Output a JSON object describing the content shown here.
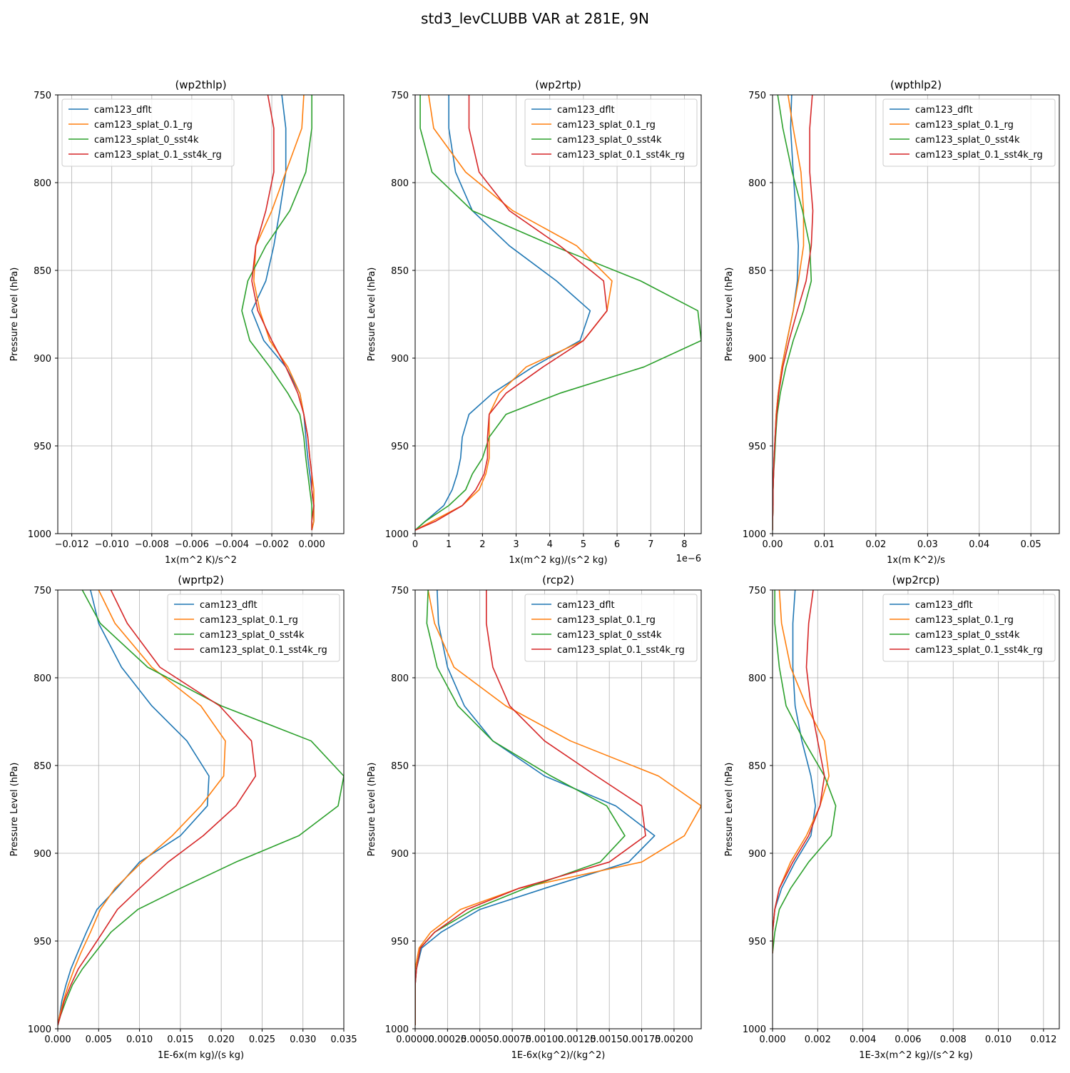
{
  "figure": {
    "title": "std3_levCLUBB VAR at 281E, 9N"
  },
  "series_names": [
    "cam123_dflt",
    "cam123_splat_0.1_rg",
    "cam123_splat_0_sst4k",
    "cam123_splat_0.1_sst4k_rg"
  ],
  "series_colors": [
    "#1f77b4",
    "#ff7f0e",
    "#2ca02c",
    "#d62728"
  ],
  "chart_data": [
    {
      "type": "line",
      "title": "(wp2thlp)",
      "xlabel": "1x(m^2 K)/s^2",
      "ylabel": "Pressure Level (hPa)",
      "xlim": [
        -0.0127,
        0.0016
      ],
      "ylim": [
        1000,
        750
      ],
      "y_inverted": true,
      "xticks": [
        -0.012,
        -0.01,
        -0.008,
        -0.006,
        -0.004,
        -0.002,
        0.0
      ],
      "xtick_labels": [
        "−0.012",
        "−0.010",
        "−0.008",
        "−0.006",
        "−0.004",
        "−0.002",
        "0.000"
      ],
      "yticks": [
        750,
        800,
        850,
        900,
        950,
        1000
      ],
      "ytick_labels": [
        "750",
        "800",
        "850",
        "900",
        "950",
        "1000"
      ],
      "grid": true,
      "legend": "upper-left",
      "levels": [
        750,
        769,
        794,
        816,
        836,
        856,
        873,
        890,
        905,
        920,
        932,
        945,
        957,
        966,
        975,
        984,
        993,
        998
      ],
      "series": [
        {
          "name": "cam123_dflt",
          "values": [
            -0.0015,
            -0.0013,
            -0.0013,
            -0.0016,
            -0.0019,
            -0.0023,
            -0.003,
            -0.0024,
            -0.0013,
            -0.0006,
            -0.0004,
            -0.0003,
            -0.0002,
            -0.0001,
            0.0,
            0.0001,
            0.0001,
            0.0
          ]
        },
        {
          "name": "cam123_splat_0.1_rg",
          "values": [
            -0.0004,
            -0.0005,
            -0.0013,
            -0.002,
            -0.0028,
            -0.0029,
            -0.0026,
            -0.0021,
            -0.0012,
            -0.0006,
            -0.0004,
            -0.0002,
            -0.0001,
            0.0,
            0.0001,
            0.0001,
            0.0001,
            0.0
          ]
        },
        {
          "name": "cam123_splat_0_sst4k",
          "values": [
            0.0,
            0.0,
            -0.0003,
            -0.0011,
            -0.0023,
            -0.0032,
            -0.0035,
            -0.0031,
            -0.0021,
            -0.0012,
            -0.0006,
            -0.0004,
            -0.0003,
            -0.0002,
            -0.0001,
            0.0,
            0.0,
            0.0
          ]
        },
        {
          "name": "cam123_splat_0.1_sst4k_rg",
          "values": [
            -0.0022,
            -0.0019,
            -0.0019,
            -0.0023,
            -0.0028,
            -0.003,
            -0.0027,
            -0.002,
            -0.0013,
            -0.0007,
            -0.0004,
            -0.0002,
            -0.0001,
            0.0,
            0.0,
            0.0001,
            0.0,
            0.0
          ]
        }
      ]
    },
    {
      "type": "line",
      "title": "(wp2rtp)",
      "xlabel": "1x(m^2 kg)/(s^2 kg)",
      "offset_text": "1e−6",
      "ylabel": "Pressure Level (hPa)",
      "xlim": [
        0,
        8.5
      ],
      "ylim": [
        1000,
        750
      ],
      "y_inverted": true,
      "xticks": [
        0,
        1,
        2,
        3,
        4,
        5,
        6,
        7,
        8
      ],
      "xtick_labels": [
        "0",
        "1",
        "2",
        "3",
        "4",
        "5",
        "6",
        "7",
        "8"
      ],
      "yticks": [
        750,
        800,
        850,
        900,
        950,
        1000
      ],
      "ytick_labels": [
        "750",
        "800",
        "850",
        "900",
        "950",
        "1000"
      ],
      "grid": true,
      "legend": "upper-right",
      "levels": [
        750,
        769,
        794,
        816,
        836,
        856,
        873,
        890,
        905,
        920,
        932,
        945,
        957,
        966,
        975,
        984,
        993,
        998
      ],
      "series": [
        {
          "name": "cam123_dflt",
          "values": [
            1.0,
            1.0,
            1.2,
            1.7,
            2.8,
            4.2,
            5.2,
            4.9,
            3.5,
            2.3,
            1.6,
            1.4,
            1.35,
            1.25,
            1.1,
            0.85,
            0.3,
            0.0
          ]
        },
        {
          "name": "cam123_splat_0.1_rg",
          "values": [
            0.4,
            0.55,
            1.5,
            2.9,
            4.8,
            5.85,
            5.7,
            5.0,
            3.3,
            2.5,
            2.2,
            2.2,
            2.2,
            2.1,
            1.9,
            1.4,
            0.5,
            0.0
          ]
        },
        {
          "name": "cam123_splat_0_sst4k",
          "values": [
            0.15,
            0.15,
            0.5,
            1.7,
            4.1,
            6.7,
            8.4,
            8.5,
            6.8,
            4.3,
            2.7,
            2.2,
            2.0,
            1.7,
            1.5,
            1.0,
            0.3,
            0.0
          ]
        },
        {
          "name": "cam123_splat_0.1_sst4k_rg",
          "values": [
            1.6,
            1.6,
            1.9,
            2.8,
            4.3,
            5.6,
            5.7,
            5.0,
            3.8,
            2.7,
            2.2,
            2.15,
            2.15,
            2.05,
            1.8,
            1.4,
            0.6,
            0.0
          ]
        }
      ]
    },
    {
      "type": "line",
      "title": "(wpthlp2)",
      "xlabel": "1x(m K^2)/s",
      "ylabel": "Pressure Level (hPa)",
      "xlim": [
        0,
        0.0555
      ],
      "ylim": [
        1000,
        750
      ],
      "y_inverted": true,
      "xticks": [
        0.0,
        0.01,
        0.02,
        0.03,
        0.04,
        0.05
      ],
      "xtick_labels": [
        "0.00",
        "0.01",
        "0.02",
        "0.03",
        "0.04",
        "0.05"
      ],
      "yticks": [
        750,
        800,
        850,
        900,
        950,
        1000
      ],
      "ytick_labels": [
        "750",
        "800",
        "850",
        "900",
        "950",
        "1000"
      ],
      "grid": true,
      "legend": "upper-right",
      "levels": [
        750,
        769,
        794,
        816,
        836,
        856,
        873,
        890,
        905,
        920,
        932,
        945,
        957,
        966,
        975,
        984,
        993,
        998
      ],
      "series": [
        {
          "name": "cam123_dflt",
          "values": [
            0.0037,
            0.0035,
            0.004,
            0.0045,
            0.005,
            0.0048,
            0.004,
            0.0028,
            0.0018,
            0.0011,
            0.0007,
            0.0005,
            0.0003,
            0.0002,
            0.0001,
            0.0001,
            0.0,
            0.0
          ]
        },
        {
          "name": "cam123_splat_0.1_rg",
          "values": [
            0.003,
            0.004,
            0.0055,
            0.006,
            0.006,
            0.005,
            0.004,
            0.0028,
            0.0018,
            0.0011,
            0.0007,
            0.0005,
            0.0003,
            0.0002,
            0.0001,
            0.0001,
            0.0,
            0.0
          ]
        },
        {
          "name": "cam123_splat_0_sst4k",
          "values": [
            0.001,
            0.002,
            0.0038,
            0.0058,
            0.0072,
            0.0075,
            0.006,
            0.004,
            0.0026,
            0.0015,
            0.0009,
            0.0006,
            0.0004,
            0.0002,
            0.0001,
            0.0001,
            0.0,
            0.0
          ]
        },
        {
          "name": "cam123_splat_0.1_sst4k_rg",
          "values": [
            0.0077,
            0.0072,
            0.0072,
            0.0078,
            0.0075,
            0.0065,
            0.0048,
            0.0032,
            0.002,
            0.0012,
            0.0008,
            0.0005,
            0.0003,
            0.0002,
            0.0001,
            0.0001,
            0.0,
            0.0
          ]
        }
      ]
    },
    {
      "type": "line",
      "title": "(wprtp2)",
      "xlabel": "1E-6x(m kg)/(s kg)",
      "ylabel": "Pressure Level (hPa)",
      "xlim": [
        0,
        0.035
      ],
      "ylim": [
        1000,
        750
      ],
      "y_inverted": true,
      "xticks": [
        0.0,
        0.005,
        0.01,
        0.015,
        0.02,
        0.025,
        0.03,
        0.035
      ],
      "xtick_labels": [
        "0.000",
        "0.005",
        "0.010",
        "0.015",
        "0.020",
        "0.025",
        "0.030",
        "0.035"
      ],
      "yticks": [
        750,
        800,
        850,
        900,
        950,
        1000
      ],
      "ytick_labels": [
        "750",
        "800",
        "850",
        "900",
        "950",
        "1000"
      ],
      "grid": true,
      "legend": "upper-right",
      "levels": [
        750,
        769,
        794,
        816,
        836,
        856,
        873,
        890,
        905,
        920,
        932,
        945,
        957,
        966,
        975,
        984,
        993,
        998
      ],
      "series": [
        {
          "name": "cam123_dflt",
          "values": [
            0.004,
            0.005,
            0.0078,
            0.0115,
            0.0158,
            0.0185,
            0.0183,
            0.015,
            0.01,
            0.0072,
            0.0048,
            0.0035,
            0.0024,
            0.0016,
            0.001,
            0.0005,
            0.0002,
            0.0
          ]
        },
        {
          "name": "cam123_splat_0.1_rg",
          "values": [
            0.005,
            0.007,
            0.0115,
            0.0175,
            0.0205,
            0.0203,
            0.0175,
            0.014,
            0.0103,
            0.007,
            0.0052,
            0.004,
            0.0028,
            0.002,
            0.0013,
            0.0007,
            0.0002,
            0.0
          ]
        },
        {
          "name": "cam123_splat_0_sst4k",
          "values": [
            0.003,
            0.0052,
            0.011,
            0.02,
            0.031,
            0.035,
            0.0343,
            0.0295,
            0.0218,
            0.015,
            0.0098,
            0.0065,
            0.0045,
            0.003,
            0.0018,
            0.001,
            0.0003,
            0.0
          ]
        },
        {
          "name": "cam123_splat_0.1_sst4k_rg",
          "values": [
            0.0065,
            0.0085,
            0.0125,
            0.0198,
            0.0237,
            0.0242,
            0.0218,
            0.0178,
            0.0135,
            0.01,
            0.0073,
            0.0055,
            0.0038,
            0.0025,
            0.0016,
            0.0008,
            0.0003,
            0.0
          ]
        }
      ]
    },
    {
      "type": "line",
      "title": "(rcp2)",
      "xlabel": "1E-6x(kg^2)/(kg^2)",
      "ylabel": "Pressure Level (hPa)",
      "xlim": [
        0,
        0.00221
      ],
      "ylim": [
        1000,
        750
      ],
      "y_inverted": true,
      "xticks": [
        0.0,
        0.00025,
        0.0005,
        0.00075,
        0.001,
        0.00125,
        0.0015,
        0.00175,
        0.002
      ],
      "xtick_labels": [
        "0.00000",
        "0.00025",
        "0.00050",
        "0.00075",
        "0.00100",
        "0.00125",
        "0.00150",
        "0.00175",
        "0.00200"
      ],
      "yticks": [
        750,
        800,
        850,
        900,
        950,
        1000
      ],
      "ytick_labels": [
        "750",
        "800",
        "850",
        "900",
        "950",
        "1000"
      ],
      "grid": true,
      "legend": "upper-right",
      "levels": [
        750,
        769,
        794,
        816,
        836,
        856,
        873,
        890,
        905,
        920,
        932,
        945,
        954,
        966,
        975,
        984,
        993,
        998
      ],
      "series": [
        {
          "name": "cam123_dflt",
          "values": [
            0.00017,
            0.00018,
            0.00025,
            0.00038,
            0.0006,
            0.001,
            0.00155,
            0.00185,
            0.00165,
            0.001,
            0.0005,
            0.0002,
            5e-05,
            1e-05,
            0.0,
            0.0,
            0.0,
            0.0
          ]
        },
        {
          "name": "cam123_splat_0.1_rg",
          "values": [
            0.0001,
            0.00015,
            0.0003,
            0.0007,
            0.0012,
            0.00188,
            0.00221,
            0.00208,
            0.00175,
            0.0008,
            0.00035,
            0.00012,
            3e-05,
            0.0,
            0.0,
            0.0,
            0.0,
            0.0
          ]
        },
        {
          "name": "cam123_splat_0_sst4k",
          "values": [
            0.0001,
            9e-05,
            0.00017,
            0.00033,
            0.0006,
            0.00105,
            0.00148,
            0.00162,
            0.00143,
            0.00085,
            0.00045,
            0.00015,
            4e-05,
            1e-05,
            0.0,
            0.0,
            0.0,
            0.0
          ]
        },
        {
          "name": "cam123_splat_0.1_sst4k_rg",
          "values": [
            0.00055,
            0.00055,
            0.0006,
            0.00073,
            0.001,
            0.0014,
            0.00175,
            0.00178,
            0.0015,
            0.0008,
            0.0004,
            0.00015,
            4e-05,
            1e-05,
            0.0,
            0.0,
            0.0,
            0.0
          ]
        }
      ]
    },
    {
      "type": "line",
      "title": "(wp2rcp)",
      "xlabel": "1E-3x(m^2 kg)/(s^2 kg)",
      "ylabel": "Pressure Level (hPa)",
      "xlim": [
        0,
        0.0127
      ],
      "ylim": [
        1000,
        750
      ],
      "y_inverted": true,
      "xticks": [
        0.0,
        0.002,
        0.004,
        0.006,
        0.008,
        0.01,
        0.012
      ],
      "xtick_labels": [
        "0.000",
        "0.002",
        "0.004",
        "0.006",
        "0.008",
        "0.010",
        "0.012"
      ],
      "yticks": [
        750,
        800,
        850,
        900,
        950,
        1000
      ],
      "ytick_labels": [
        "750",
        "800",
        "850",
        "900",
        "950",
        "1000"
      ],
      "grid": true,
      "legend": "upper-right",
      "levels": [
        750,
        769,
        794,
        816,
        836,
        856,
        873,
        890,
        905,
        920,
        932,
        945,
        957
      ],
      "series": [
        {
          "name": "cam123_dflt",
          "values": [
            0.001,
            0.0009,
            0.0009,
            0.001,
            0.0013,
            0.0017,
            0.0019,
            0.0017,
            0.001,
            0.0004,
            0.0001,
            0.0,
            0.0
          ]
        },
        {
          "name": "cam123_splat_0.1_rg",
          "values": [
            0.0003,
            0.0004,
            0.0008,
            0.0015,
            0.0023,
            0.0025,
            0.0021,
            0.0015,
            0.0008,
            0.0003,
            0.0001,
            0.0,
            0.0
          ]
        },
        {
          "name": "cam123_splat_0_sst4k",
          "values": [
            0.0001,
            0.0001,
            0.0003,
            0.0006,
            0.0014,
            0.0023,
            0.0028,
            0.0026,
            0.0016,
            0.0008,
            0.0003,
            0.0001,
            0.0
          ]
        },
        {
          "name": "cam123_splat_0.1_sst4k_rg",
          "values": [
            0.0018,
            0.0016,
            0.0015,
            0.0017,
            0.002,
            0.0023,
            0.0021,
            0.0016,
            0.0009,
            0.0003,
            0.0001,
            0.0,
            0.0
          ]
        }
      ]
    }
  ]
}
